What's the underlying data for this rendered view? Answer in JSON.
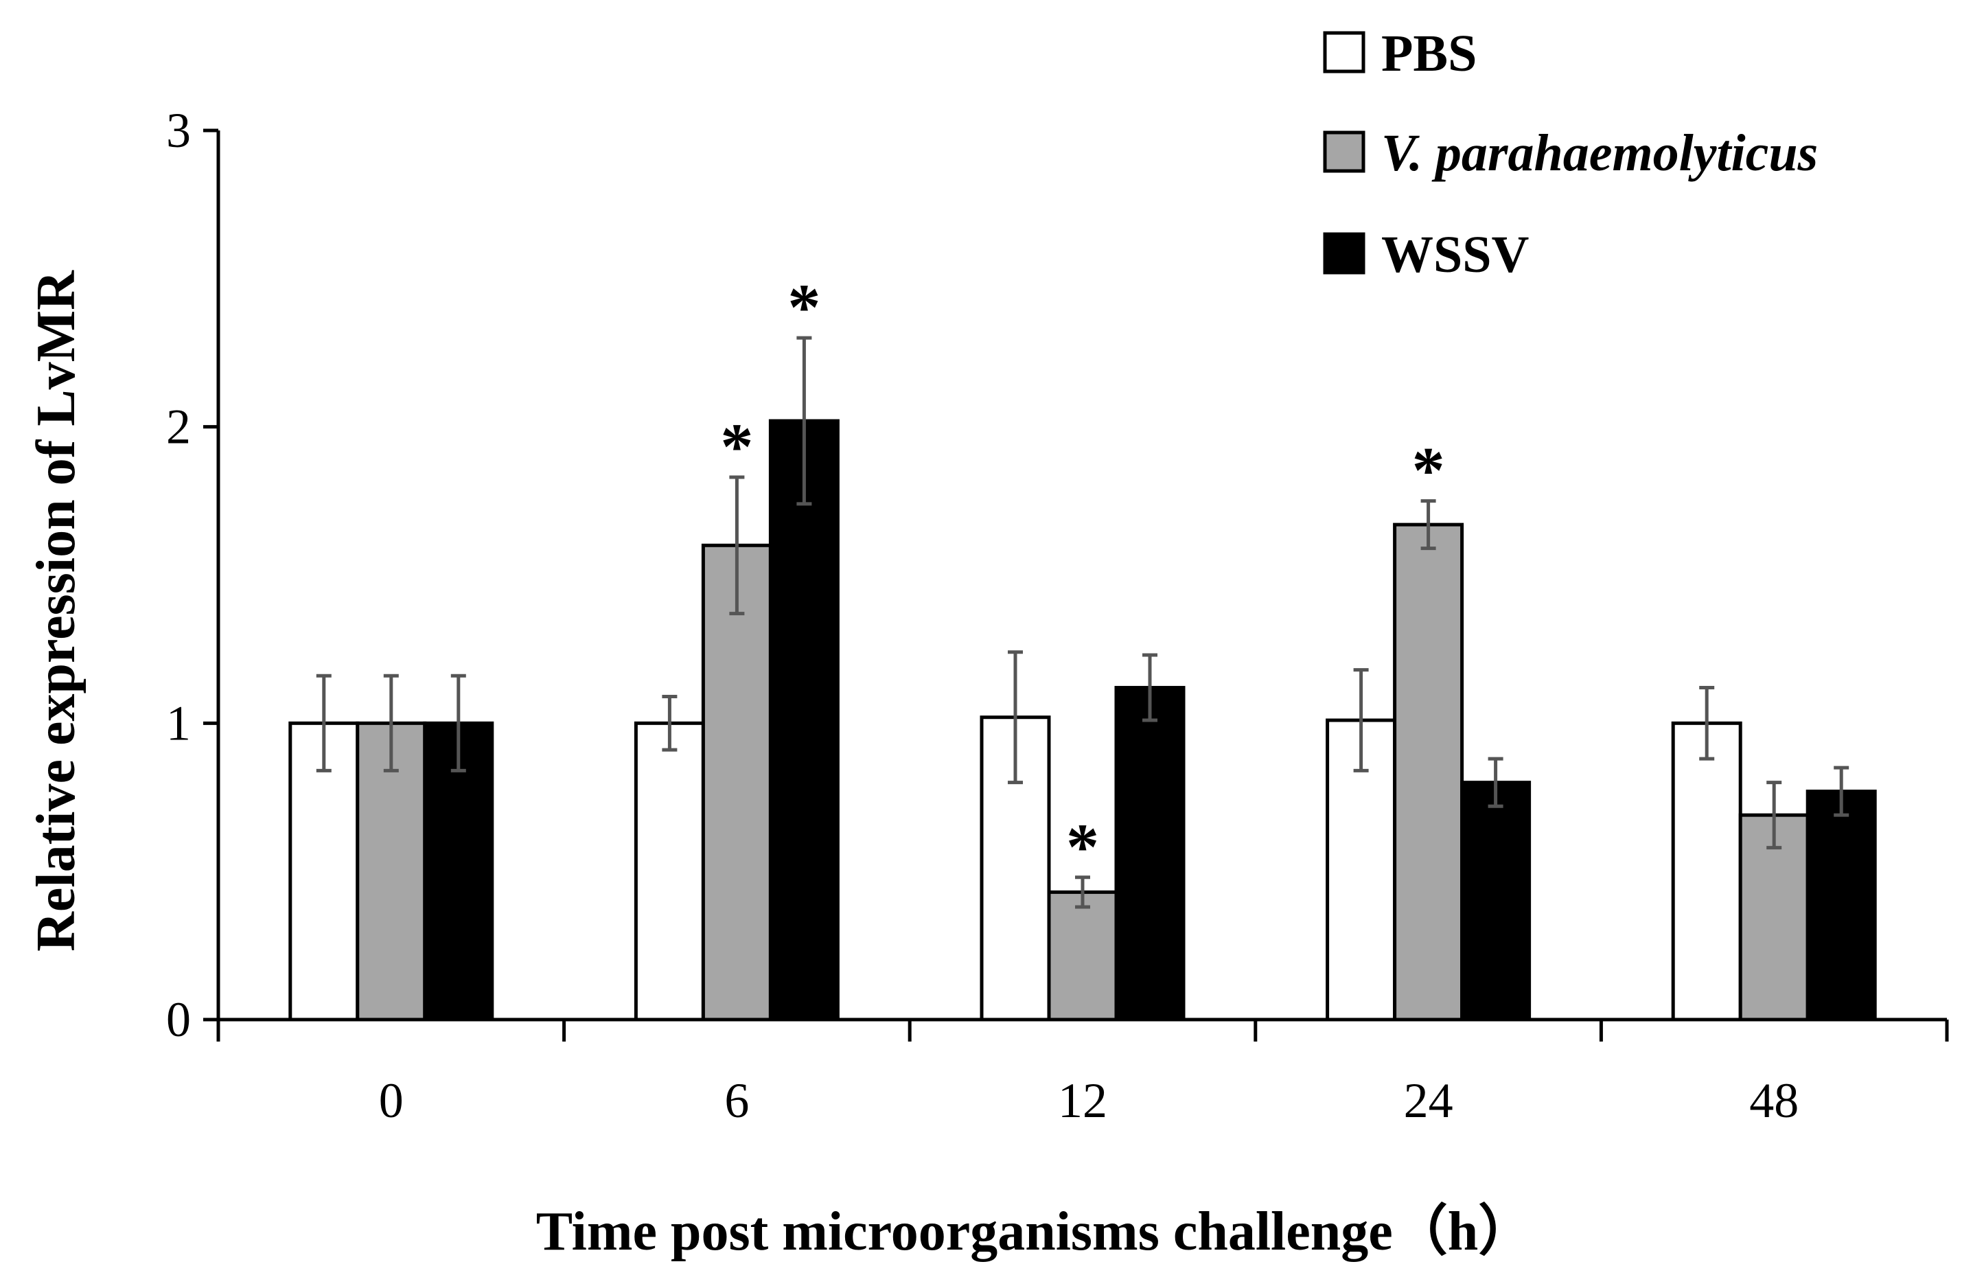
{
  "chart_data": {
    "type": "bar",
    "title": "",
    "xlabel": "Time post microorganisms challenge（h）",
    "ylabel": "Relative expression of  LvMR",
    "categories": [
      "0",
      "6",
      "12",
      "24",
      "48"
    ],
    "ylim": [
      0,
      3
    ],
    "yticks": [
      "0",
      "1",
      "2",
      "3"
    ],
    "grid": false,
    "legend_position": "top-right",
    "series": [
      {
        "name": "PBS",
        "color": "#ffffff",
        "values": [
          1.0,
          1.0,
          1.02,
          1.01,
          1.0
        ],
        "errors": [
          0.16,
          0.09,
          0.22,
          0.17,
          0.12
        ],
        "significant": [
          false,
          false,
          false,
          false,
          false
        ]
      },
      {
        "name": "V. parahaemolyticus",
        "italic": true,
        "color": "#a6a6a6",
        "values": [
          1.0,
          1.6,
          0.43,
          1.67,
          0.69
        ],
        "errors": [
          0.16,
          0.23,
          0.05,
          0.08,
          0.11
        ],
        "significant": [
          false,
          true,
          true,
          true,
          false
        ]
      },
      {
        "name": "WSSV",
        "color": "#000000",
        "values": [
          1.0,
          2.02,
          1.12,
          0.8,
          0.77
        ],
        "errors": [
          0.16,
          0.28,
          0.11,
          0.08,
          0.08
        ],
        "significant": [
          false,
          true,
          false,
          false,
          false
        ]
      }
    ],
    "significance_marker": "*"
  }
}
